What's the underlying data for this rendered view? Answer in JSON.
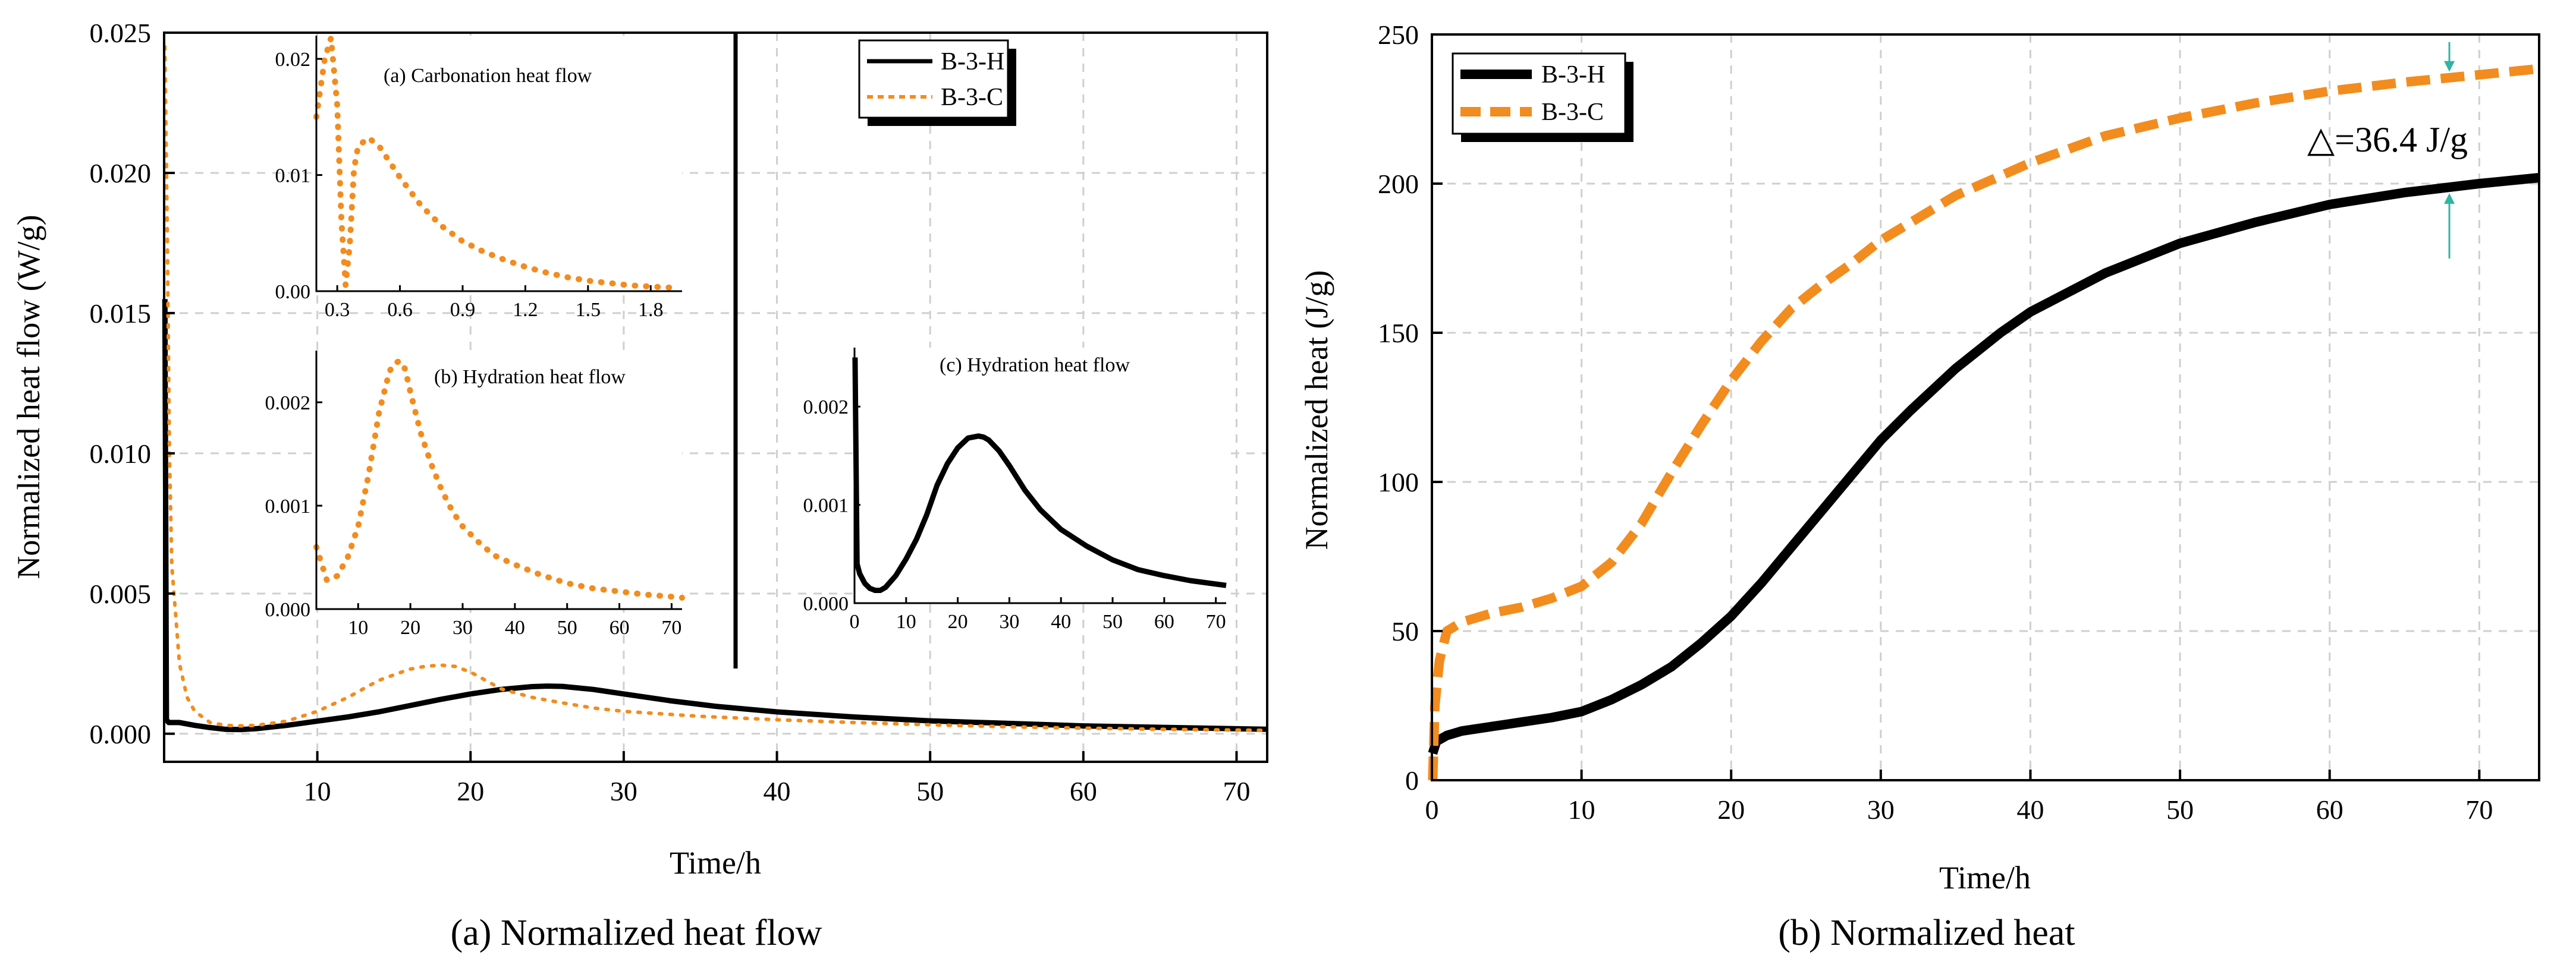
{
  "colors": {
    "hydration": "#000000",
    "carbonation": "#F28C1E",
    "arrow": "#2FB5A3"
  },
  "chart_data": [
    {
      "type": "line",
      "caption": "(a) Normalized heat flow",
      "xlabel": "Time/h",
      "ylabel": "Normalized heat flow (W/g)",
      "xlim": [
        0,
        72
      ],
      "ylim": [
        -0.001,
        0.025
      ],
      "xticks": [
        "10",
        "20",
        "30",
        "40",
        "50",
        "60",
        "70"
      ],
      "yticks": [
        "0.000",
        "0.005",
        "0.010",
        "0.015",
        "0.020",
        "0.025"
      ],
      "grid": true,
      "legend_position": "top-right",
      "series": [
        {
          "name": "B-3-H",
          "style": "solid",
          "x": [
            0.05,
            0.15,
            0.3,
            0.5,
            1,
            2,
            3,
            4,
            5,
            6,
            8,
            10,
            12,
            14,
            16,
            18,
            20,
            22,
            24,
            25,
            26,
            28,
            30,
            33,
            36,
            40,
            45,
            50,
            55,
            60,
            65,
            72
          ],
          "y": [
            0.0155,
            0.0005,
            0.0004,
            0.0004,
            0.0004,
            0.0003,
            0.00022,
            0.00016,
            0.00015,
            0.00018,
            0.0003,
            0.00045,
            0.0006,
            0.00078,
            0.001,
            0.00122,
            0.00142,
            0.00158,
            0.00168,
            0.0017,
            0.00169,
            0.00158,
            0.00142,
            0.00118,
            0.00098,
            0.00078,
            0.0006,
            0.00046,
            0.00037,
            0.00028,
            0.00023,
            0.00016
          ]
        },
        {
          "name": "B-3-C",
          "style": "dotted",
          "x": [
            0.05,
            0.2,
            0.35,
            0.5,
            1,
            1.5,
            2,
            3,
            4,
            5,
            6,
            8,
            10,
            12,
            14,
            16,
            17,
            18,
            19,
            20,
            22,
            24,
            26,
            28,
            30,
            35,
            40,
            45,
            50,
            55,
            60,
            65,
            72
          ],
          "y": [
            0.0245,
            0.018,
            0.01,
            0.006,
            0.0025,
            0.0013,
            0.0008,
            0.0004,
            0.0003,
            0.00028,
            0.0003,
            0.00045,
            0.0008,
            0.0013,
            0.0019,
            0.0023,
            0.0024,
            0.00245,
            0.0024,
            0.0022,
            0.0016,
            0.0013,
            0.0011,
            0.00092,
            0.0008,
            0.00062,
            0.0005,
            0.0004,
            0.00032,
            0.00025,
            0.0002,
            0.00016,
            0.00012
          ]
        }
      ],
      "insets": [
        {
          "title": "(a) Carbonation heat flow",
          "xlim": [
            0.2,
            1.95
          ],
          "ylim": [
            0,
            0.022
          ],
          "xticks": [
            "0.3",
            "0.6",
            "0.9",
            "1.2",
            "1.5",
            "1.8"
          ],
          "yticks": [
            "0.00",
            "0.01",
            "0.02"
          ],
          "series": "B-3-C",
          "x": [
            0.2,
            0.24,
            0.27,
            0.3,
            0.32,
            0.34,
            0.36,
            0.38,
            0.4,
            0.45,
            0.5,
            0.6,
            0.7,
            0.8,
            0.9,
            1.0,
            1.1,
            1.2,
            1.3,
            1.4,
            1.5,
            1.6,
            1.7,
            1.8,
            1.9
          ],
          "y": [
            0.015,
            0.02,
            0.0218,
            0.016,
            0.006,
            0.0005,
            0.004,
            0.0105,
            0.0125,
            0.0132,
            0.0125,
            0.0098,
            0.0074,
            0.0056,
            0.0043,
            0.0034,
            0.0027,
            0.0021,
            0.0016,
            0.0012,
            0.0009,
            0.0007,
            0.0005,
            0.0004,
            0.0003
          ]
        },
        {
          "title": "(b) Hydration heat flow",
          "xlim": [
            2,
            72
          ],
          "ylim": [
            0,
            0.0025
          ],
          "xticks": [
            "10",
            "20",
            "30",
            "40",
            "50",
            "60",
            "70"
          ],
          "yticks": [
            "0.000",
            "0.001",
            "0.002"
          ],
          "series": "B-3-C",
          "x": [
            2,
            4,
            6,
            8,
            10,
            12,
            14,
            16,
            17,
            18,
            19,
            20,
            22,
            24,
            26,
            28,
            30,
            33,
            36,
            40,
            45,
            50,
            55,
            60,
            65,
            70,
            72
          ],
          "y": [
            0.0006,
            0.00028,
            0.00032,
            0.0005,
            0.0008,
            0.0013,
            0.0019,
            0.0023,
            0.00238,
            0.0024,
            0.00232,
            0.0021,
            0.0017,
            0.0014,
            0.00115,
            0.00095,
            0.0008,
            0.00065,
            0.00052,
            0.00043,
            0.00033,
            0.00025,
            0.0002,
            0.00017,
            0.00014,
            0.00012,
            0.00011
          ]
        },
        {
          "title": "(c) Hydration heat flow",
          "xlim": [
            0,
            72
          ],
          "ylim": [
            0,
            0.0026
          ],
          "xticks": [
            "0",
            "10",
            "20",
            "30",
            "40",
            "50",
            "60",
            "70"
          ],
          "yticks": [
            "0.000",
            "0.001",
            "0.002"
          ],
          "series": "B-3-H",
          "x": [
            0.1,
            0.5,
            1,
            2,
            3,
            4,
            5,
            6,
            8,
            10,
            12,
            14,
            16,
            18,
            20,
            22,
            24,
            25,
            26,
            28,
            30,
            33,
            36,
            40,
            45,
            50,
            55,
            60,
            65,
            72
          ],
          "y": [
            0.0025,
            0.0004,
            0.0003,
            0.0002,
            0.00015,
            0.00013,
            0.00013,
            0.00016,
            0.00028,
            0.00045,
            0.00065,
            0.0009,
            0.0012,
            0.00142,
            0.00158,
            0.00168,
            0.0017,
            0.00169,
            0.00166,
            0.00155,
            0.0014,
            0.00115,
            0.00095,
            0.00075,
            0.00058,
            0.00044,
            0.00034,
            0.00028,
            0.00023,
            0.00018
          ]
        }
      ]
    },
    {
      "type": "line",
      "caption": "(b) Normalized heat",
      "xlabel": "Time/h",
      "ylabel": "Normalized heat (J/g)",
      "xlim": [
        0,
        74
      ],
      "ylim": [
        0,
        250
      ],
      "xticks": [
        "0",
        "10",
        "20",
        "30",
        "40",
        "50",
        "60",
        "70"
      ],
      "yticks": [
        "0",
        "50",
        "100",
        "150",
        "200",
        "250"
      ],
      "grid": true,
      "legend_position": "top-left",
      "annotation": "△=36.4 J/g",
      "annotation_x": 68,
      "series": [
        {
          "name": "B-3-H",
          "style": "solid",
          "x": [
            0.05,
            0.3,
            1,
            2,
            4,
            6,
            8,
            10,
            12,
            14,
            16,
            18,
            20,
            22,
            24,
            26,
            28,
            30,
            32,
            35,
            38,
            40,
            45,
            50,
            55,
            60,
            65,
            70,
            74
          ],
          "y": [
            9,
            13,
            15,
            16.5,
            18,
            19.5,
            21,
            23,
            27,
            32,
            38,
            46,
            55,
            66,
            78,
            90,
            102,
            114,
            124,
            138,
            150,
            157,
            170,
            180,
            187,
            193,
            197,
            200,
            202
          ]
        },
        {
          "name": "B-3-C",
          "style": "dashed",
          "x": [
            0.05,
            0.2,
            0.5,
            1,
            2,
            4,
            6,
            8,
            10,
            12,
            14,
            16,
            18,
            20,
            22,
            24,
            26,
            28,
            30,
            35,
            40,
            45,
            50,
            55,
            60,
            65,
            70,
            74
          ],
          "y": [
            0,
            25,
            40,
            50,
            53,
            56,
            58,
            61,
            65,
            73,
            86,
            103,
            119,
            134,
            147,
            158,
            166,
            173,
            181,
            196,
            207,
            216,
            222,
            227,
            231,
            234,
            236.5,
            238.5
          ]
        }
      ]
    }
  ]
}
